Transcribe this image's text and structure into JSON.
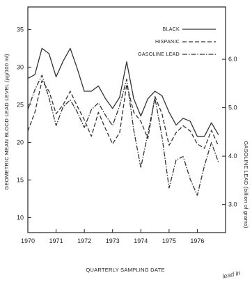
{
  "chart_data": {
    "type": "line",
    "xlabel": "QUARTERLY SAMPLING DATE",
    "ylabel": "GEOMETRIC MEAN BLOOD LEAD LEVEL (µg/100 ml)",
    "y2label": "GASOLINE LEAD (billion of grams)",
    "annotation": "lead in",
    "xlim": [
      1970,
      1977.0
    ],
    "ylim": [
      8,
      38
    ],
    "y2lim": [
      2.42,
      7.08
    ],
    "x_ticks": [
      1970,
      1971,
      1972,
      1973,
      1974,
      1975,
      1976
    ],
    "x_tick_labels": [
      "1970",
      "1971",
      "1972",
      "1973",
      "1974",
      "1975",
      "1976"
    ],
    "y_ticks": [
      10,
      15,
      20,
      25,
      30,
      35
    ],
    "y_tick_labels": [
      "10",
      "15",
      "20",
      "25",
      "30",
      "35"
    ],
    "y2_ticks": [
      3.0,
      4.0,
      5.0,
      6.0
    ],
    "y2_tick_labels": [
      "3.0",
      "4.0",
      "5.0",
      "6.0"
    ],
    "grid": false,
    "legend": "top-right",
    "series": [
      {
        "name": "BLACK",
        "style": "solid",
        "axis": "left",
        "x": [
          1970.0,
          1970.25,
          1970.5,
          1970.75,
          1971.0,
          1971.25,
          1971.5,
          1971.75,
          1972.0,
          1972.25,
          1972.5,
          1972.75,
          1973.0,
          1973.25,
          1973.5,
          1973.75,
          1974.0,
          1974.25,
          1974.5,
          1974.75,
          1975.0,
          1975.25,
          1975.5,
          1975.75,
          1976.0,
          1976.25,
          1976.5,
          1976.75
        ],
        "y": [
          28.5,
          29.0,
          32.5,
          31.8,
          28.7,
          30.8,
          32.5,
          29.8,
          26.8,
          26.8,
          27.5,
          25.8,
          24.5,
          26.0,
          30.7,
          25.8,
          23.5,
          25.8,
          26.8,
          26.2,
          24.0,
          22.3,
          23.2,
          22.8,
          20.8,
          20.8,
          22.6,
          21.0
        ]
      },
      {
        "name": "HISPANIC",
        "style": "dashed",
        "axis": "left",
        "x": [
          1970.0,
          1970.25,
          1970.5,
          1970.75,
          1971.0,
          1971.25,
          1971.5,
          1971.75,
          1972.0,
          1972.25,
          1972.5,
          1972.75,
          1973.0,
          1973.25,
          1973.5,
          1973.75,
          1974.0,
          1974.25,
          1974.5,
          1974.75,
          1975.0,
          1975.25,
          1975.5,
          1975.75,
          1976.0,
          1976.25,
          1976.5,
          1976.75
        ],
        "y": [
          21.5,
          24.0,
          28.2,
          26.8,
          23.8,
          25.0,
          26.8,
          24.8,
          23.0,
          20.8,
          24.0,
          21.8,
          19.8,
          21.3,
          27.7,
          24.0,
          22.8,
          20.5,
          26.1,
          23.8,
          19.6,
          21.3,
          22.2,
          21.5,
          19.8,
          19.2,
          21.6,
          19.5
        ]
      },
      {
        "name": "GASOLINE LEAD",
        "style": "dash-dot",
        "axis": "right",
        "x": [
          1970.0,
          1970.25,
          1970.5,
          1970.75,
          1971.0,
          1971.25,
          1971.5,
          1971.75,
          1972.0,
          1972.25,
          1972.5,
          1972.75,
          1973.0,
          1973.25,
          1973.5,
          1973.75,
          1974.0,
          1974.25,
          1974.5,
          1974.75,
          1975.0,
          1975.25,
          1975.5,
          1975.75,
          1976.0,
          1976.25,
          1976.5,
          1976.75
        ],
        "y": [
          4.96,
          5.37,
          5.67,
          5.2,
          4.63,
          5.02,
          5.16,
          4.91,
          4.59,
          4.96,
          5.1,
          4.84,
          4.63,
          5.04,
          5.59,
          4.54,
          3.76,
          4.47,
          5.2,
          4.4,
          3.34,
          3.92,
          3.99,
          3.52,
          3.19,
          3.8,
          4.28,
          3.87
        ]
      }
    ]
  }
}
